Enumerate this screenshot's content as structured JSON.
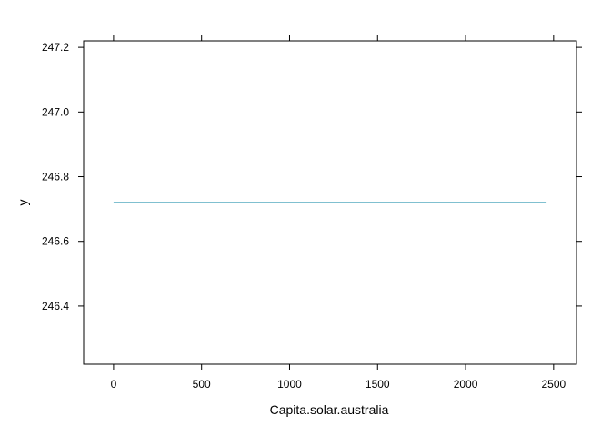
{
  "chart_data": {
    "type": "line",
    "xlabel": "Capita.solar.australia",
    "ylabel": "y",
    "xlim": [
      -170,
      2630
    ],
    "ylim": [
      246.22,
      247.22
    ],
    "x_ticks": [
      0,
      500,
      1000,
      1500,
      2000,
      2500
    ],
    "x_tick_labels": [
      "0",
      "500",
      "1000",
      "1500",
      "2000",
      "2500"
    ],
    "y_ticks": [
      246.4,
      246.6,
      246.8,
      247.0,
      247.2
    ],
    "y_tick_labels": [
      "246.4",
      "246.6",
      "246.8",
      "247.0",
      "247.2"
    ],
    "grid": false,
    "legend": "none",
    "series": [
      {
        "color": "#0080a0",
        "x": [
          0,
          2460
        ],
        "y": [
          246.72,
          246.72
        ]
      }
    ]
  }
}
